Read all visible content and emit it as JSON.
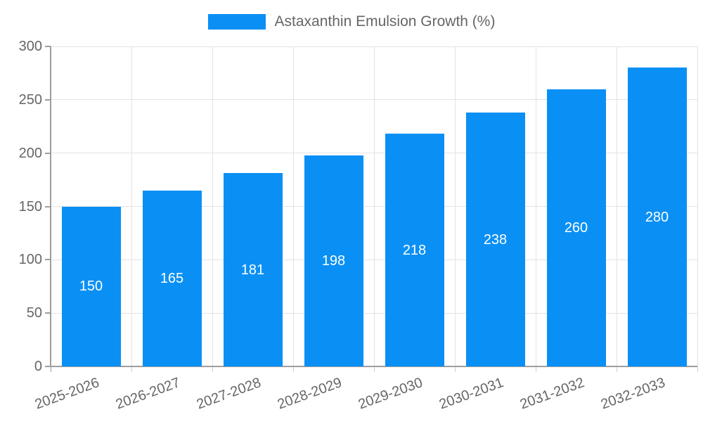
{
  "legend": {
    "label": "Astaxanthin Emulsion Growth (%)"
  },
  "colors": {
    "bar": "#0a90f5",
    "bar_label": "#ffffff",
    "grid": "#e3e3e3",
    "axis": "#9e9e9e",
    "x_tick_mark": "#cfcfcf",
    "tick_text": "#666666",
    "legend_text": "#666666",
    "background": "#ffffff"
  },
  "chart_data": {
    "type": "bar",
    "title": "",
    "xlabel": "",
    "ylabel": "",
    "categories": [
      "2025-2026",
      "2026-2027",
      "2027-2028",
      "2028-2029",
      "2029-2030",
      "2030-2031",
      "2031-2032",
      "2032-2033"
    ],
    "series": [
      {
        "name": "Astaxanthin Emulsion Growth (%)",
        "values": [
          150,
          165,
          181,
          198,
          218,
          238,
          260,
          280
        ]
      }
    ],
    "ylim": [
      0,
      300
    ],
    "yticks": [
      0,
      50,
      100,
      150,
      200,
      250,
      300
    ],
    "grid": true,
    "legend_position": "top-center",
    "value_labels": "inside-center",
    "x_tick_rotation_deg": -20
  }
}
